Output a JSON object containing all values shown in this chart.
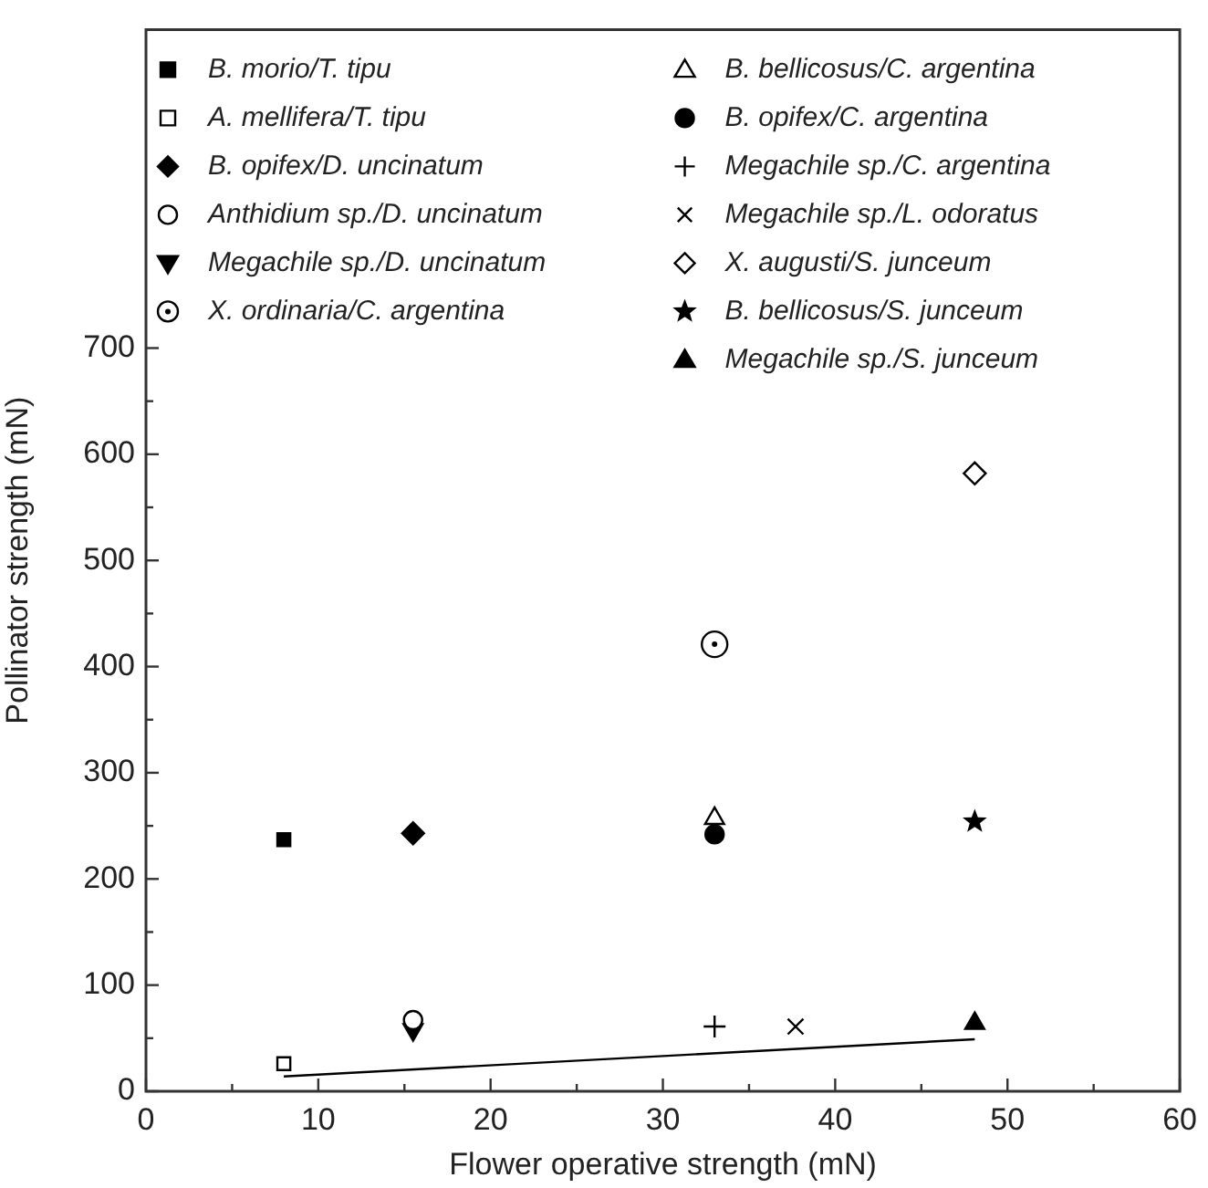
{
  "chart_data": {
    "type": "scatter",
    "xlabel": "Flower operative strength (mN)",
    "ylabel": "Pollinator strength (mN)",
    "xlim": [
      0,
      60
    ],
    "ylim": [
      0,
      1000
    ],
    "xticks": [
      0,
      {
        "value": 5,
        "label": null
      },
      10,
      {
        "value": 15,
        "label": null
      },
      20,
      {
        "value": 25,
        "label": null
      },
      30,
      {
        "value": 35,
        "label": null
      },
      40,
      {
        "value": 45,
        "label": null
      },
      50,
      {
        "value": 55,
        "label": null
      },
      60
    ],
    "yticks": [
      0,
      {
        "value": 50,
        "label": null
      },
      100,
      {
        "value": 150,
        "label": null
      },
      200,
      {
        "value": 250,
        "label": null
      },
      300,
      {
        "value": 350,
        "label": null
      },
      400,
      {
        "value": 450,
        "label": null
      },
      500,
      {
        "value": 550,
        "label": null
      },
      600,
      {
        "value": 650,
        "label": null
      },
      700
    ],
    "grid": false,
    "legend": "top",
    "series": [
      {
        "name": "B. morio/T. tipu",
        "color": "#000000",
        "marker": "square",
        "x": [
          8.0
        ],
        "values": [
          237
        ]
      },
      {
        "name": "A. mellifera/T. tipu",
        "color": "#000000",
        "marker": "square-open",
        "x": [
          8.0
        ],
        "values": [
          26
        ]
      },
      {
        "name": "B. opifex/D. uncinatum",
        "color": "#000000",
        "marker": "diamond",
        "x": [
          15.5
        ],
        "values": [
          243
        ]
      },
      {
        "name": "Anthidium sp./D. uncinatum",
        "color": "#000000",
        "marker": "circle-open",
        "x": [
          15.5
        ],
        "values": [
          67
        ]
      },
      {
        "name": "Megachile sp./D. uncinatum",
        "color": "#000000",
        "marker": "triangle-down",
        "x": [
          15.5
        ],
        "values": [
          58
        ]
      },
      {
        "name": "X. ordinaria/C. argentina",
        "color": "#000000",
        "marker": "circle-dot",
        "x": [
          33.0
        ],
        "values": [
          421
        ]
      },
      {
        "name": "B. bellicosus/C. argentina",
        "color": "#000000",
        "marker": "triangle-open",
        "x": [
          33.0
        ],
        "values": [
          257
        ]
      },
      {
        "name": "B. opifex/C. argentina",
        "color": "#000000",
        "marker": "circle",
        "x": [
          33.0
        ],
        "values": [
          242
        ]
      },
      {
        "name": "Megachile sp./C. argentina",
        "color": "#000000",
        "marker": "cross",
        "x": [
          33.0
        ],
        "values": [
          61
        ]
      },
      {
        "name": "Megachile sp./L. odoratus",
        "color": "#000000",
        "marker": "x",
        "x": [
          37.7
        ],
        "values": [
          61
        ]
      },
      {
        "name": "X. augusti/S. junceum",
        "color": "#000000",
        "marker": "diamond-open",
        "x": [
          48.1
        ],
        "values": [
          582
        ]
      },
      {
        "name": "B. bellicosus/S. junceum",
        "color": "#000000",
        "marker": "star",
        "x": [
          48.1
        ],
        "values": [
          254
        ]
      },
      {
        "name": "Megachile sp./S. junceum",
        "color": "#000000",
        "marker": "triangle",
        "x": [
          48.1
        ],
        "values": [
          64
        ]
      },
      {
        "type": "line",
        "color": "#000000",
        "marker": "none",
        "line_style": "solid",
        "x": [
          8.0,
          48.1
        ],
        "values": [
          14,
          49
        ]
      }
    ]
  }
}
